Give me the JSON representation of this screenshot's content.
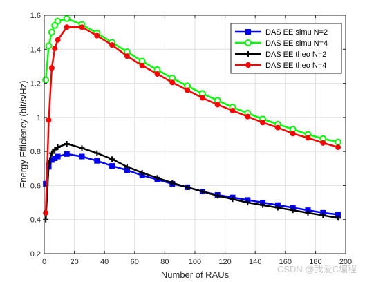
{
  "chart_data": {
    "type": "line",
    "title": "",
    "xlabel": "Number of  RAUs",
    "ylabel": "Energy Efficiency (bit/s/Hz)",
    "xlim": [
      0,
      200
    ],
    "ylim": [
      0.2,
      1.6
    ],
    "xticks": [
      0,
      20,
      40,
      60,
      80,
      100,
      120,
      140,
      160,
      180,
      200
    ],
    "yticks": [
      0.2,
      0.4,
      0.6,
      0.8,
      1,
      1.2,
      1.4,
      1.6
    ],
    "grid": true,
    "legend_position": "top-right",
    "series": [
      {
        "name": "DAS EE simu N=2",
        "color": "#0000ff",
        "marker": "square",
        "x": [
          1,
          3,
          5,
          7,
          9,
          15,
          25,
          35,
          45,
          55,
          65,
          75,
          85,
          95,
          105,
          115,
          125,
          135,
          145,
          155,
          165,
          175,
          185,
          195
        ],
        "y": [
          0.61,
          0.71,
          0.75,
          0.76,
          0.77,
          0.785,
          0.77,
          0.745,
          0.715,
          0.69,
          0.66,
          0.635,
          0.61,
          0.59,
          0.565,
          0.545,
          0.53,
          0.515,
          0.5,
          0.485,
          0.47,
          0.455,
          0.44,
          0.43
        ]
      },
      {
        "name": "DAS EE simu N=4",
        "color": "#00ff00",
        "marker": "circle",
        "x": [
          1,
          3,
          5,
          7,
          9,
          15,
          25,
          35,
          45,
          55,
          65,
          75,
          85,
          95,
          105,
          115,
          125,
          135,
          145,
          155,
          165,
          175,
          185,
          195
        ],
        "y": [
          1.22,
          1.42,
          1.5,
          1.54,
          1.565,
          1.58,
          1.545,
          1.495,
          1.44,
          1.385,
          1.33,
          1.28,
          1.23,
          1.185,
          1.14,
          1.1,
          1.06,
          1.025,
          0.99,
          0.96,
          0.93,
          0.9,
          0.875,
          0.855
        ]
      },
      {
        "name": "DAS EE theo N=2",
        "color": "#000000",
        "marker": "plus",
        "x": [
          1,
          3,
          5,
          7,
          9,
          15,
          25,
          35,
          45,
          55,
          65,
          75,
          85,
          95,
          105,
          115,
          125,
          135,
          145,
          155,
          165,
          175,
          185,
          195
        ],
        "y": [
          0.4,
          0.73,
          0.79,
          0.81,
          0.825,
          0.845,
          0.82,
          0.79,
          0.755,
          0.71,
          0.675,
          0.645,
          0.615,
          0.59,
          0.565,
          0.54,
          0.52,
          0.5,
          0.485,
          0.47,
          0.455,
          0.44,
          0.425,
          0.41
        ]
      },
      {
        "name": "DAS EE theo N=4",
        "color": "#ff0000",
        "marker": "dot",
        "x": [
          1,
          3,
          5,
          7,
          9,
          15,
          25,
          35,
          45,
          55,
          65,
          75,
          85,
          95,
          105,
          115,
          125,
          135,
          145,
          155,
          165,
          175,
          185,
          195
        ],
        "y": [
          0.44,
          0.985,
          1.29,
          1.405,
          1.455,
          1.53,
          1.53,
          1.48,
          1.425,
          1.36,
          1.305,
          1.255,
          1.205,
          1.16,
          1.115,
          1.075,
          1.04,
          1.005,
          0.97,
          0.94,
          0.905,
          0.88,
          0.85,
          0.825
        ]
      }
    ]
  },
  "watermark": "CSDN @我爱C编程"
}
